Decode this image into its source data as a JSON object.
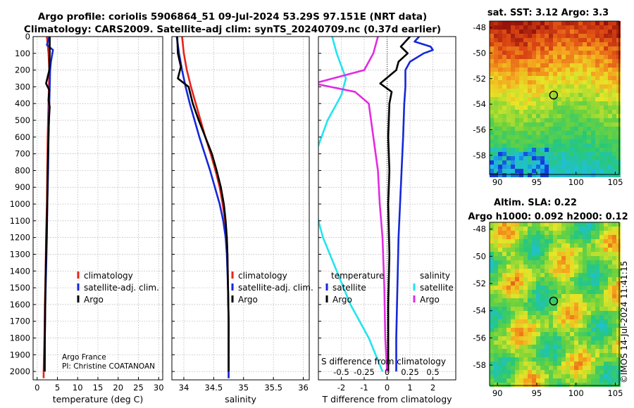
{
  "title_line1": "Argo profile: coriolis 5906864_51 09-Jul-2024 53.29S 97.151E (NRT data)",
  "title_line2": "Climatology: CARS2009. Satellite-adj clim: synTS_20240709.nc (0.37d earlier)",
  "credit": "Argo France",
  "pi": "PI: Christine COATANOAN",
  "watermark": "©IMOS 14-Jul-2024 11:41:15",
  "colors": {
    "climatology": "#e8231a",
    "satellite": "#1428d8",
    "argo": "#000000",
    "sat_salinity": "#22e4ee",
    "argo_salinity": "#e22be0"
  },
  "chart_data": [
    {
      "type": "line",
      "name": "temperature",
      "xlabel": "temperature (deg C)",
      "ylabel": "",
      "xlim": [
        -1,
        31
      ],
      "ylim": [
        2050,
        0
      ],
      "xticks": [
        0,
        5,
        10,
        15,
        20,
        25,
        30
      ],
      "yticks": [
        0,
        100,
        200,
        300,
        400,
        500,
        600,
        700,
        800,
        900,
        1000,
        1100,
        1200,
        1300,
        1400,
        1500,
        1600,
        1700,
        1800,
        1900,
        2000
      ],
      "legend": [
        "climatology",
        "satellite-adj. clim.",
        "Argo"
      ],
      "series": [
        {
          "name": "climatology",
          "color": "#e8231a",
          "points": [
            [
              2.4,
              0
            ],
            [
              2.6,
              50
            ],
            [
              2.8,
              100
            ],
            [
              2.9,
              150
            ],
            [
              3.0,
              200
            ],
            [
              2.9,
              300
            ],
            [
              2.8,
              400
            ],
            [
              2.7,
              500
            ],
            [
              2.6,
              600
            ],
            [
              2.5,
              800
            ],
            [
              2.4,
              1000
            ],
            [
              2.2,
              1200
            ],
            [
              2.1,
              1400
            ],
            [
              1.9,
              1600
            ],
            [
              1.8,
              1800
            ],
            [
              1.6,
              2000
            ],
            [
              1.6,
              2040
            ]
          ]
        },
        {
          "name": "satellite-adj. clim.",
          "color": "#1428d8",
          "points": [
            [
              3.0,
              0
            ],
            [
              2.4,
              50
            ],
            [
              3.9,
              80
            ],
            [
              3.4,
              150
            ],
            [
              3.2,
              200
            ],
            [
              3.1,
              300
            ],
            [
              3.0,
              400
            ],
            [
              2.9,
              500
            ],
            [
              2.8,
              600
            ],
            [
              2.7,
              800
            ],
            [
              2.5,
              1000
            ],
            [
              2.4,
              1200
            ],
            [
              2.2,
              1400
            ],
            [
              2.0,
              1600
            ],
            [
              1.9,
              1800
            ],
            [
              1.9,
              2000
            ]
          ]
        },
        {
          "name": "Argo",
          "color": "#000000",
          "points": [
            [
              3.1,
              0
            ],
            [
              3.1,
              100
            ],
            [
              3.0,
              200
            ],
            [
              2.2,
              280
            ],
            [
              3.0,
              320
            ],
            [
              2.8,
              380
            ],
            [
              3.1,
              420
            ],
            [
              2.9,
              500
            ],
            [
              2.8,
              600
            ],
            [
              2.6,
              800
            ],
            [
              2.5,
              1000
            ],
            [
              2.3,
              1200
            ],
            [
              2.1,
              1400
            ],
            [
              2.0,
              1600
            ],
            [
              1.9,
              1800
            ],
            [
              1.8,
              2000
            ]
          ]
        }
      ]
    },
    {
      "type": "line",
      "name": "salinity",
      "xlabel": "salinity",
      "ylabel": "",
      "xlim": [
        33.8,
        36.1
      ],
      "ylim": [
        2050,
        0
      ],
      "xticks": [
        34,
        34.5,
        35,
        35.5,
        36
      ],
      "xtick_labels": [
        "34",
        "34.5",
        "35",
        "35.5",
        "36"
      ],
      "series": [
        {
          "name": "climatology",
          "color": "#e8231a",
          "points": [
            [
              33.97,
              0
            ],
            [
              34.0,
              100
            ],
            [
              34.05,
              200
            ],
            [
              34.12,
              300
            ],
            [
              34.2,
              400
            ],
            [
              34.28,
              500
            ],
            [
              34.36,
              600
            ],
            [
              34.45,
              700
            ],
            [
              34.53,
              800
            ],
            [
              34.6,
              900
            ],
            [
              34.65,
              1000
            ],
            [
              34.69,
              1100
            ],
            [
              34.72,
              1200
            ],
            [
              34.73,
              1300
            ],
            [
              34.74,
              1500
            ],
            [
              34.75,
              1700
            ],
            [
              34.75,
              2040
            ]
          ]
        },
        {
          "name": "satellite-adj. clim.",
          "color": "#1428d8",
          "points": [
            [
              33.88,
              0
            ],
            [
              33.92,
              100
            ],
            [
              33.97,
              200
            ],
            [
              34.03,
              300
            ],
            [
              34.1,
              400
            ],
            [
              34.18,
              500
            ],
            [
              34.26,
              600
            ],
            [
              34.35,
              700
            ],
            [
              34.44,
              800
            ],
            [
              34.52,
              900
            ],
            [
              34.6,
              1000
            ],
            [
              34.66,
              1100
            ],
            [
              34.7,
              1200
            ],
            [
              34.72,
              1300
            ],
            [
              34.74,
              1500
            ],
            [
              34.75,
              1700
            ],
            [
              34.75,
              2040
            ]
          ]
        },
        {
          "name": "Argo",
          "color": "#000000",
          "points": [
            [
              33.89,
              0
            ],
            [
              33.9,
              100
            ],
            [
              33.95,
              180
            ],
            [
              33.9,
              250
            ],
            [
              34.08,
              300
            ],
            [
              34.15,
              400
            ],
            [
              34.25,
              500
            ],
            [
              34.36,
              600
            ],
            [
              34.47,
              700
            ],
            [
              34.55,
              800
            ],
            [
              34.62,
              900
            ],
            [
              34.67,
              1000
            ],
            [
              34.7,
              1100
            ],
            [
              34.72,
              1200
            ],
            [
              34.73,
              1300
            ],
            [
              34.74,
              1500
            ],
            [
              34.75,
              1700
            ],
            [
              34.75,
              2000
            ]
          ]
        }
      ]
    },
    {
      "type": "line",
      "name": "difference",
      "xlabel": "T difference from climatology",
      "x2label": "S difference from climatology",
      "xlim": [
        -3,
        3
      ],
      "ylim": [
        2050,
        0
      ],
      "xticks": [
        -2,
        -1,
        0,
        1,
        2
      ],
      "x2ticks": [
        -0.5,
        -0.25,
        0,
        0.25,
        0.5
      ],
      "x2tick_labels": [
        "-0.5",
        "-0.25",
        "0",
        "0.25",
        "0.5"
      ],
      "legend_left_title": "temperature",
      "legend_right_title": "salinity",
      "legend_left": [
        "satellite",
        "Argo"
      ],
      "legend_right": [
        "satellite",
        "Argo"
      ],
      "series": [
        {
          "name": "T satellite",
          "color": "#1428d8",
          "points": [
            [
              1.4,
              0
            ],
            [
              1.2,
              30
            ],
            [
              1.9,
              60
            ],
            [
              2.0,
              80
            ],
            [
              1.6,
              100
            ],
            [
              1.0,
              150
            ],
            [
              0.8,
              200
            ],
            [
              0.8,
              300
            ],
            [
              0.75,
              400
            ],
            [
              0.7,
              600
            ],
            [
              0.6,
              900
            ],
            [
              0.5,
              1200
            ],
            [
              0.45,
              1500
            ],
            [
              0.4,
              1800
            ],
            [
              0.4,
              2000
            ]
          ]
        },
        {
          "name": "T Argo",
          "color": "#000000",
          "points": [
            [
              1.0,
              0
            ],
            [
              0.6,
              60
            ],
            [
              0.9,
              100
            ],
            [
              0.5,
              150
            ],
            [
              0.4,
              200
            ],
            [
              -0.3,
              280
            ],
            [
              0.2,
              330
            ],
            [
              0.1,
              400
            ],
            [
              0.05,
              600
            ],
            [
              0.1,
              800
            ],
            [
              0.05,
              1000
            ],
            [
              0.1,
              1300
            ],
            [
              0.05,
              1600
            ],
            [
              0.05,
              2000
            ]
          ]
        },
        {
          "name": "S satellite",
          "color": "#22e4ee",
          "points": [
            [
              -0.6,
              0
            ],
            [
              -0.55,
              100
            ],
            [
              -0.45,
              250
            ],
            [
              -0.5,
              350
            ],
            [
              -0.65,
              500
            ],
            [
              -0.75,
              650
            ],
            [
              -0.85,
              800
            ],
            [
              -0.8,
              1000
            ],
            [
              -0.7,
              1200
            ],
            [
              -0.55,
              1400
            ],
            [
              -0.4,
              1600
            ],
            [
              -0.2,
              1800
            ],
            [
              -0.05,
              2000
            ]
          ]
        },
        {
          "name": "S Argo",
          "color": "#e22be0",
          "points": [
            [
              -0.1,
              0
            ],
            [
              -0.15,
              100
            ],
            [
              -0.25,
              200
            ],
            [
              -0.8,
              280
            ],
            [
              -0.35,
              330
            ],
            [
              -0.2,
              400
            ],
            [
              -0.15,
              600
            ],
            [
              -0.1,
              800
            ],
            [
              -0.08,
              1000
            ],
            [
              -0.05,
              1200
            ],
            [
              -0.03,
              1500
            ],
            [
              -0.02,
              1800
            ],
            [
              0.0,
              2000
            ]
          ]
        }
      ]
    },
    {
      "type": "heatmap",
      "name": "sst_map",
      "title": "sat. SST: 3.12 Argo: 3.3",
      "xlim": [
        89,
        105.5
      ],
      "ylim": [
        -59.5,
        -47.5
      ],
      "xticks": [
        90,
        95,
        100,
        105
      ],
      "yticks": [
        -48,
        -50,
        -52,
        -54,
        -56,
        -58
      ],
      "argo_position": [
        97.151,
        -53.29
      ]
    },
    {
      "type": "heatmap",
      "name": "sla_map",
      "title": "Altim. SLA: 0.22",
      "subtitle": "Argo h1000: 0.092 h2000: 0.12",
      "xlim": [
        89,
        105.5
      ],
      "ylim": [
        -59.5,
        -47.5
      ],
      "xticks": [
        90,
        95,
        100,
        105
      ],
      "yticks": [
        -48,
        -50,
        -52,
        -54,
        -56,
        -58
      ],
      "argo_position": [
        97.151,
        -53.29
      ]
    }
  ]
}
